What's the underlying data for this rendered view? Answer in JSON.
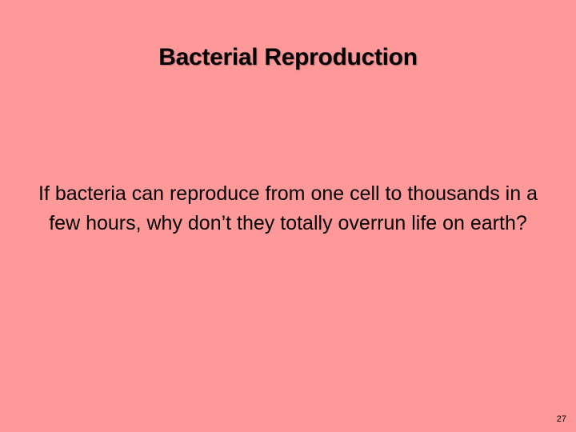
{
  "slide": {
    "title": "Bacterial Reproduction",
    "body": "If bacteria can reproduce from one cell to thousands in a few hours, why don’t they totally overrun life on earth?",
    "slide_number": "27"
  },
  "colors": {
    "background": "#ff9999",
    "text": "#000000"
  }
}
